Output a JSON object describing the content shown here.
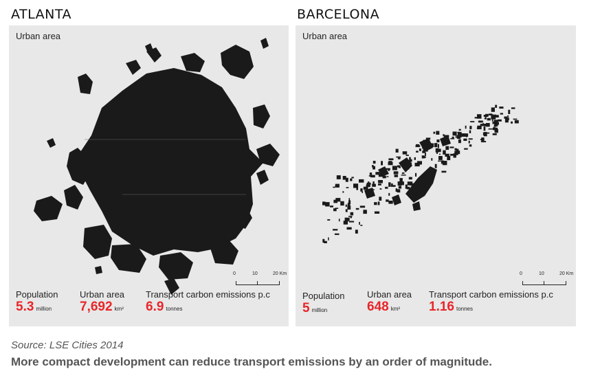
{
  "cities": [
    {
      "name": "ATLANTA",
      "panel_label": "Urban area",
      "scale": {
        "ticks": [
          "0",
          "10",
          "20 Km"
        ]
      },
      "stats": [
        {
          "label": "Population",
          "value": "5.3",
          "unit": "million"
        },
        {
          "label": "Urban area",
          "value": "7,692",
          "unit": "km²"
        },
        {
          "label": "Transport carbon emissions p.c",
          "value": "6.9",
          "unit": "tonnes"
        }
      ]
    },
    {
      "name": "BARCELONA",
      "panel_label": "Urban area",
      "scale": {
        "ticks": [
          "0",
          "10",
          "20 Km"
        ]
      },
      "stats": [
        {
          "label": "Population",
          "value": "5",
          "unit": "million"
        },
        {
          "label": "Urban area",
          "value": "648",
          "unit": "km²"
        },
        {
          "label": "Transport carbon emissions p.c",
          "value": "1.16",
          "unit": "tonnes"
        }
      ]
    }
  ],
  "source": "Source: LSE Cities 2014",
  "caption": "More compact development can reduce transport emissions by an order of magnitude.",
  "colors": {
    "accent": "#e8262a",
    "urban_fill": "#1a1a1a",
    "panel_bg": "#e8e8e8"
  }
}
